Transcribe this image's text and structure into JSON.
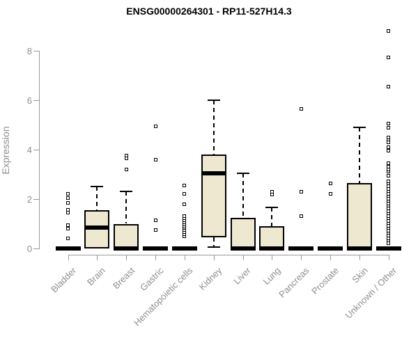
{
  "page": {
    "background": "#ffffff"
  },
  "chart_data": {
    "type": "boxplot",
    "title": "ENSG00000264301 - RP11-527H14.3",
    "ylabel": "Expression",
    "xlabel": "",
    "ylim": [
      0,
      8.9
    ],
    "yticks": [
      0,
      2,
      4,
      6,
      8
    ],
    "grid": false,
    "legend": "none",
    "categories": [
      "Bladder",
      "Brain",
      "Breast",
      "Gastric",
      "Hematopoietic cells",
      "Kidney",
      "Liver",
      "Lung",
      "Pancreas",
      "Prostate",
      "Skin",
      "Unknown / Other"
    ],
    "series": [
      {
        "name": "Bladder",
        "q1": 0,
        "median": 0,
        "q3": 0,
        "whisker_low": 0,
        "whisker_high": 0,
        "outliers": [
          0.4,
          0.8,
          0.95,
          1.45,
          1.55,
          1.85,
          2.05,
          2.2
        ]
      },
      {
        "name": "Brain",
        "q1": 0,
        "median": 0.85,
        "q3": 1.55,
        "whisker_low": 0,
        "whisker_high": 2.5,
        "outliers": []
      },
      {
        "name": "Breast",
        "q1": 0,
        "median": 0,
        "q3": 1.0,
        "whisker_low": 0,
        "whisker_high": 2.3,
        "outliers": [
          3.2,
          3.65,
          3.75
        ]
      },
      {
        "name": "Gastric",
        "q1": 0,
        "median": 0,
        "q3": 0,
        "whisker_low": 0,
        "whisker_high": 0,
        "outliers": [
          0.75,
          1.15,
          3.6,
          4.95
        ]
      },
      {
        "name": "Hematopoietic cells",
        "q1": 0,
        "median": 0,
        "q3": 0,
        "whisker_low": 0,
        "whisker_high": 0,
        "outliers": [
          0.5,
          0.58,
          0.66,
          0.74,
          0.82,
          0.9,
          0.98,
          1.06,
          1.14,
          1.22,
          1.3,
          1.8,
          2.2,
          2.55
        ]
      },
      {
        "name": "Kidney",
        "q1": 0.45,
        "median": 3.05,
        "q3": 3.8,
        "whisker_low": 0.05,
        "whisker_high": 6.0,
        "outliers": []
      },
      {
        "name": "Liver",
        "q1": 0,
        "median": 0,
        "q3": 1.25,
        "whisker_low": 0,
        "whisker_high": 3.05,
        "outliers": []
      },
      {
        "name": "Lung",
        "q1": 0,
        "median": 0,
        "q3": 0.9,
        "whisker_low": 0,
        "whisker_high": 1.65,
        "outliers": [
          2.18,
          2.3
        ]
      },
      {
        "name": "Pancreas",
        "q1": 0,
        "median": 0,
        "q3": 0,
        "whisker_low": 0,
        "whisker_high": 0,
        "outliers": [
          1.3,
          2.3,
          5.65
        ]
      },
      {
        "name": "Prostate",
        "q1": 0,
        "median": 0,
        "q3": 0,
        "whisker_low": 0,
        "whisker_high": 0,
        "outliers": [
          2.2,
          2.63
        ]
      },
      {
        "name": "Skin",
        "q1": 0,
        "median": 0,
        "q3": 2.65,
        "whisker_low": 0,
        "whisker_high": 4.9,
        "outliers": []
      },
      {
        "name": "Unknown / Other",
        "q1": 0,
        "median": 0,
        "q3": 0,
        "whisker_low": 0,
        "whisker_high": 0,
        "outliers": [
          0.22,
          0.32,
          0.42,
          0.52,
          0.62,
          0.72,
          0.82,
          0.92,
          1.02,
          1.12,
          1.22,
          1.32,
          1.42,
          1.52,
          1.62,
          1.72,
          1.82,
          1.92,
          2.02,
          2.12,
          2.22,
          2.32,
          2.42,
          2.52,
          2.62,
          2.72,
          2.95,
          3.1,
          3.2,
          3.3,
          3.45,
          3.95,
          4.1,
          4.3,
          4.4,
          4.5,
          4.88,
          5.05,
          6.55,
          7.73,
          8.8
        ]
      }
    ],
    "colors": {
      "box_fill": "#EFE8D1",
      "box_border": "#000000",
      "median": "#000000",
      "outlier_fill": "#ffffff",
      "axis": "#999999",
      "label": "#8f8f8f",
      "title": "#000000"
    }
  }
}
